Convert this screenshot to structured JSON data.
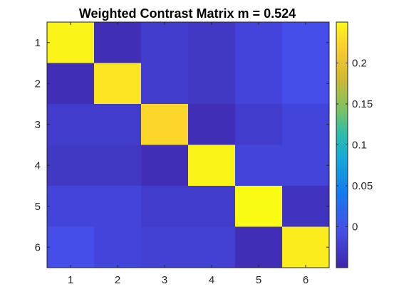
{
  "chart_data": {
    "type": "heatmap",
    "title": "Weighted Contrast Matrix m = 0.524",
    "x_tick_labels": [
      "1",
      "2",
      "3",
      "4",
      "5",
      "6"
    ],
    "y_tick_labels": [
      "1",
      "2",
      "3",
      "4",
      "5",
      "6"
    ],
    "xlabel": "",
    "ylabel": "",
    "values": [
      [
        0.245,
        -0.04,
        -0.025,
        -0.03,
        -0.015,
        -0.005
      ],
      [
        -0.04,
        0.235,
        -0.025,
        -0.03,
        -0.015,
        -0.005
      ],
      [
        -0.025,
        -0.025,
        0.225,
        -0.04,
        -0.025,
        -0.015
      ],
      [
        -0.03,
        -0.03,
        -0.04,
        0.245,
        -0.015,
        -0.015
      ],
      [
        -0.015,
        -0.015,
        -0.025,
        -0.025,
        0.25,
        -0.035
      ],
      [
        -0.005,
        -0.015,
        -0.02,
        -0.02,
        -0.04,
        0.24
      ]
    ],
    "color_range": [
      -0.05,
      0.25
    ],
    "colormap": "parula",
    "colorbar": {
      "ticks": [
        0,
        0.05,
        0.1,
        0.15,
        0.2
      ],
      "tick_labels": [
        "0",
        "0.05",
        "0.1",
        "0.15",
        "0.2"
      ]
    }
  }
}
